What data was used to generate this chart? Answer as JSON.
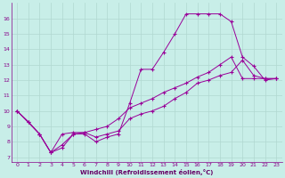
{
  "xlabel": "Windchill (Refroidissement éolien,°C)",
  "background_color": "#c8eee8",
  "grid_color": "#b0d8d0",
  "line_color": "#990099",
  "xlim": [
    -0.5,
    23.5
  ],
  "ylim": [
    6.7,
    17.0
  ],
  "yticks": [
    7,
    8,
    9,
    10,
    11,
    12,
    13,
    14,
    15,
    16
  ],
  "xticks": [
    0,
    1,
    2,
    3,
    4,
    5,
    6,
    7,
    8,
    9,
    10,
    11,
    12,
    13,
    14,
    15,
    16,
    17,
    18,
    19,
    20,
    21,
    22,
    23
  ],
  "line1_x": [
    0,
    1,
    2,
    3,
    4,
    5,
    6,
    7,
    8,
    9,
    10,
    11,
    12,
    13,
    14,
    15,
    16,
    17,
    18,
    19,
    20,
    21,
    22,
    23
  ],
  "line1_y": [
    10.0,
    9.3,
    8.5,
    7.3,
    7.6,
    8.5,
    8.5,
    8.0,
    8.3,
    8.5,
    10.5,
    12.7,
    12.7,
    13.8,
    15.0,
    16.3,
    16.3,
    16.3,
    16.3,
    15.8,
    13.5,
    12.9,
    12.0,
    12.1
  ],
  "line2_x": [
    0,
    1,
    2,
    3,
    4,
    5,
    6,
    7,
    8,
    9,
    10,
    11,
    12,
    13,
    14,
    15,
    16,
    17,
    18,
    19,
    20,
    21,
    22,
    23
  ],
  "line2_y": [
    10.0,
    9.3,
    8.5,
    7.3,
    8.5,
    8.6,
    8.6,
    8.8,
    9.0,
    9.5,
    10.2,
    10.5,
    10.8,
    11.2,
    11.5,
    11.8,
    12.2,
    12.5,
    13.0,
    13.5,
    12.1,
    12.1,
    12.1,
    12.1
  ],
  "line3_x": [
    0,
    2,
    3,
    4,
    5,
    6,
    7,
    8,
    9,
    10,
    11,
    12,
    13,
    14,
    15,
    16,
    17,
    18,
    19,
    20,
    21,
    22,
    23
  ],
  "line3_y": [
    10.0,
    8.5,
    7.3,
    7.8,
    8.5,
    8.6,
    8.3,
    8.5,
    8.7,
    9.5,
    9.8,
    10.0,
    10.3,
    10.8,
    11.2,
    11.8,
    12.0,
    12.3,
    12.5,
    13.3,
    12.3,
    12.1,
    12.1
  ]
}
